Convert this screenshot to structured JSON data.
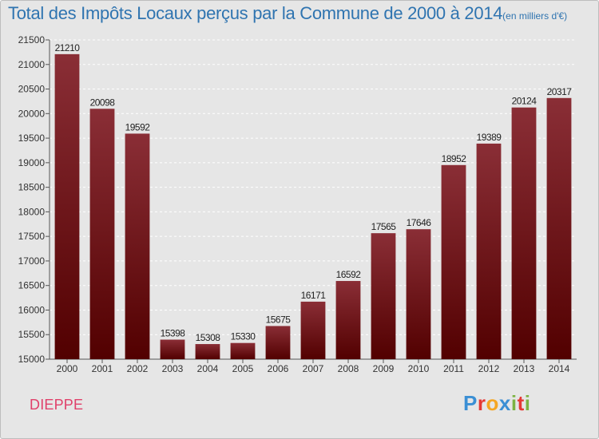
{
  "title": "Total des Impôts Locaux perçus par la Commune de 2000 à 2014",
  "title_unit": "(en milliers d'€)",
  "commune": "DIEPPE",
  "brand": {
    "letters": [
      "P",
      "r",
      "o",
      "x",
      "i",
      "t",
      "i"
    ],
    "colors": [
      "#3b8fd4",
      "#e53935",
      "#f5a623",
      "#3b8fd4",
      "#7cb342",
      "#e53935",
      "#7cb342"
    ]
  },
  "colors": {
    "bar_top": "#8a2e36",
    "bar_bottom": "#520000",
    "title": "#2f74b0",
    "commune": "#e0406a"
  },
  "chart_data": {
    "type": "bar",
    "title": "Total des Impôts Locaux perçus par la Commune de 2000 à 2014",
    "xlabel": "",
    "ylabel": "",
    "categories": [
      "2000",
      "2001",
      "2002",
      "2003",
      "2004",
      "2005",
      "2006",
      "2007",
      "2008",
      "2009",
      "2010",
      "2011",
      "2012",
      "2013",
      "2014"
    ],
    "values": [
      21210,
      20098,
      19592,
      15398,
      15308,
      15330,
      15675,
      16171,
      16592,
      17565,
      17646,
      18952,
      19389,
      20124,
      20317
    ],
    "ylim": [
      15000,
      21500
    ],
    "yticks": [
      15000,
      15500,
      16000,
      16500,
      17000,
      17500,
      18000,
      18500,
      19000,
      19500,
      20000,
      20500,
      21000,
      21500
    ],
    "grid": true
  }
}
